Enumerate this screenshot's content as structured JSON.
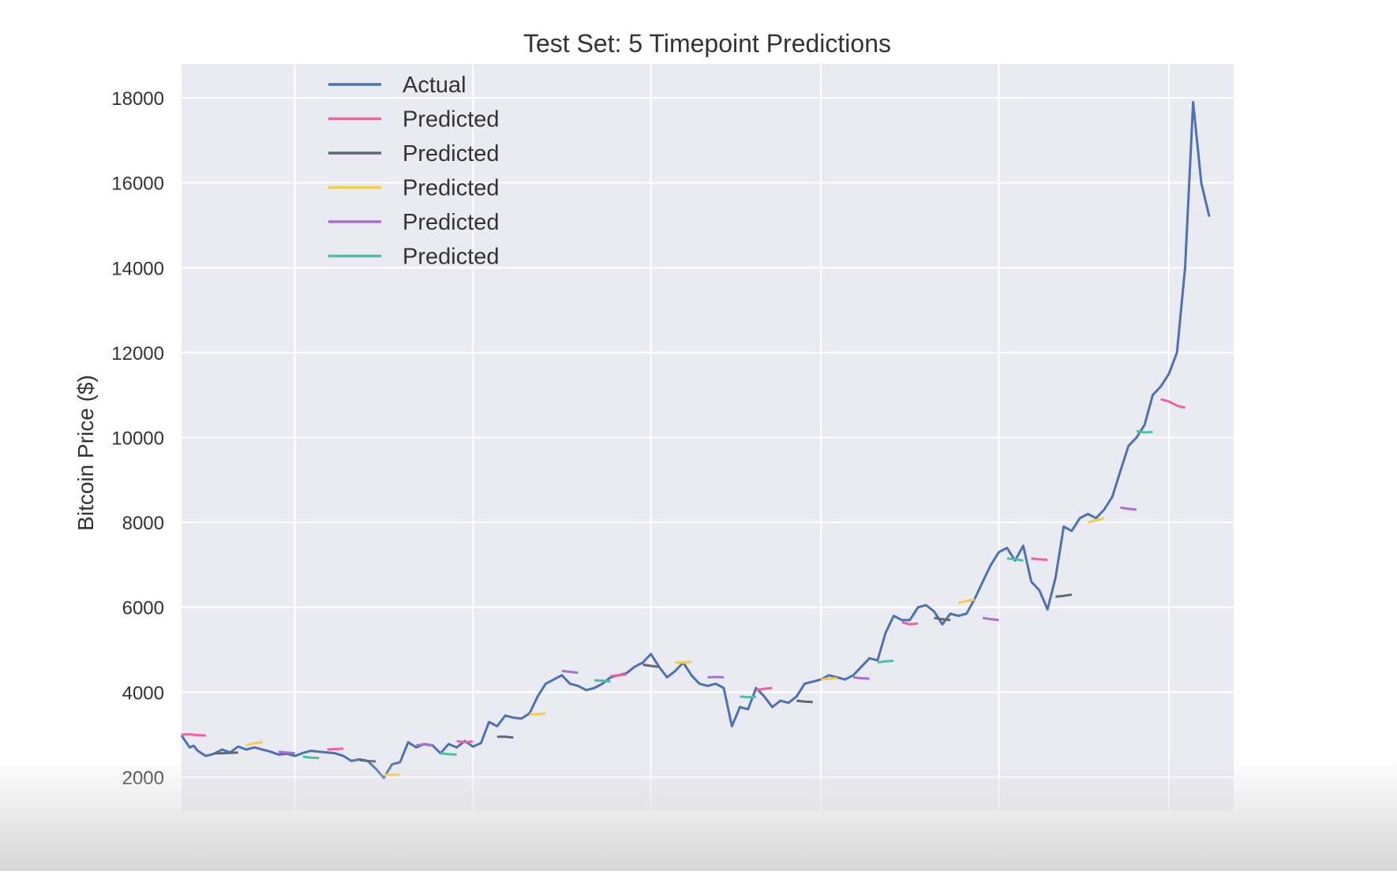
{
  "chart_data": {
    "type": "line",
    "title": "Test Set: 5 Timepoint Predictions",
    "ylabel": "Bitcoin Price ($)",
    "xlabel": "",
    "xlim": [
      0,
      130
    ],
    "ylim": [
      1200,
      18800
    ],
    "yticks": [
      2000,
      4000,
      6000,
      8000,
      10000,
      12000,
      14000,
      16000,
      18000
    ],
    "xgrid": [
      14,
      36,
      58,
      79,
      101,
      122
    ],
    "grid": true,
    "legend_position": "upper-left",
    "legend": [
      {
        "label": "Actual",
        "color": "#4c72b0"
      },
      {
        "label": "Predicted",
        "color": "#f25fa2"
      },
      {
        "label": "Predicted",
        "color": "#5d6a73"
      },
      {
        "label": "Predicted",
        "color": "#f2cc4d"
      },
      {
        "label": "Predicted",
        "color": "#a96fd0"
      },
      {
        "label": "Predicted",
        "color": "#4ac1a4"
      }
    ],
    "series": [
      {
        "role": "actual",
        "color": "#4c72b0",
        "points": [
          [
            0,
            2980
          ],
          [
            1,
            2700
          ],
          [
            1.5,
            2740
          ],
          [
            2,
            2620
          ],
          [
            3,
            2500
          ],
          [
            4,
            2550
          ],
          [
            5,
            2650
          ],
          [
            6,
            2580
          ],
          [
            7,
            2720
          ],
          [
            8,
            2650
          ],
          [
            9,
            2700
          ],
          [
            10,
            2650
          ],
          [
            11,
            2600
          ],
          [
            12,
            2530
          ],
          [
            13,
            2550
          ],
          [
            14,
            2500
          ],
          [
            15,
            2570
          ],
          [
            16,
            2620
          ],
          [
            17,
            2600
          ],
          [
            18,
            2580
          ],
          [
            19,
            2560
          ],
          [
            20,
            2500
          ],
          [
            21,
            2380
          ],
          [
            22,
            2420
          ],
          [
            23,
            2380
          ],
          [
            24,
            2200
          ],
          [
            25,
            1980
          ],
          [
            26,
            2300
          ],
          [
            27,
            2350
          ],
          [
            28,
            2820
          ],
          [
            29,
            2700
          ],
          [
            30,
            2780
          ],
          [
            31,
            2750
          ],
          [
            32,
            2560
          ],
          [
            33,
            2780
          ],
          [
            34,
            2700
          ],
          [
            35,
            2850
          ],
          [
            36,
            2720
          ],
          [
            37,
            2800
          ],
          [
            38,
            3300
          ],
          [
            39,
            3200
          ],
          [
            40,
            3450
          ],
          [
            41,
            3400
          ],
          [
            42,
            3380
          ],
          [
            43,
            3500
          ],
          [
            44,
            3900
          ],
          [
            45,
            4200
          ],
          [
            46,
            4300
          ],
          [
            47,
            4400
          ],
          [
            48,
            4200
          ],
          [
            49,
            4150
          ],
          [
            50,
            4050
          ],
          [
            51,
            4100
          ],
          [
            52,
            4200
          ],
          [
            53,
            4350
          ],
          [
            54,
            4400
          ],
          [
            55,
            4450
          ],
          [
            56,
            4600
          ],
          [
            57,
            4700
          ],
          [
            58,
            4900
          ],
          [
            59,
            4600
          ],
          [
            60,
            4350
          ],
          [
            61,
            4500
          ],
          [
            62,
            4700
          ],
          [
            63,
            4400
          ],
          [
            64,
            4200
          ],
          [
            65,
            4150
          ],
          [
            66,
            4200
          ],
          [
            67,
            4100
          ],
          [
            68,
            3200
          ],
          [
            69,
            3650
          ],
          [
            70,
            3600
          ],
          [
            71,
            4100
          ],
          [
            72,
            3900
          ],
          [
            73,
            3650
          ],
          [
            74,
            3800
          ],
          [
            75,
            3750
          ],
          [
            76,
            3900
          ],
          [
            77,
            4200
          ],
          [
            78,
            4250
          ],
          [
            79,
            4300
          ],
          [
            80,
            4400
          ],
          [
            81,
            4350
          ],
          [
            82,
            4300
          ],
          [
            83,
            4400
          ],
          [
            84,
            4600
          ],
          [
            85,
            4800
          ],
          [
            86,
            4750
          ],
          [
            87,
            5400
          ],
          [
            88,
            5800
          ],
          [
            89,
            5700
          ],
          [
            90,
            5700
          ],
          [
            91,
            6000
          ],
          [
            92,
            6050
          ],
          [
            93,
            5900
          ],
          [
            94,
            5600
          ],
          [
            95,
            5850
          ],
          [
            96,
            5800
          ],
          [
            97,
            5850
          ],
          [
            98,
            6200
          ],
          [
            99,
            6600
          ],
          [
            100,
            7000
          ],
          [
            101,
            7300
          ],
          [
            102,
            7400
          ],
          [
            103,
            7100
          ],
          [
            104,
            7450
          ],
          [
            105,
            6600
          ],
          [
            106,
            6400
          ],
          [
            107,
            5950
          ],
          [
            108,
            6700
          ],
          [
            109,
            7900
          ],
          [
            110,
            7800
          ],
          [
            111,
            8100
          ],
          [
            112,
            8200
          ],
          [
            113,
            8100
          ],
          [
            114,
            8300
          ],
          [
            115,
            8600
          ],
          [
            116,
            9200
          ],
          [
            117,
            9800
          ],
          [
            118,
            10000
          ],
          [
            119,
            10300
          ],
          [
            120,
            11000
          ],
          [
            121,
            11200
          ],
          [
            122,
            11500
          ],
          [
            123,
            12000
          ],
          [
            124,
            14000
          ],
          [
            125,
            17900
          ],
          [
            126,
            16000
          ],
          [
            127,
            15200
          ]
        ]
      },
      {
        "role": "predicted",
        "color": "#f25fa2",
        "segments": [
          [
            [
              0,
              3000
            ],
            [
              1,
              3010
            ],
            [
              2,
              2990
            ],
            [
              3,
              2980
            ]
          ],
          [
            [
              18,
              2650
            ],
            [
              19,
              2660
            ],
            [
              20,
              2670
            ]
          ],
          [
            [
              34,
              2850
            ],
            [
              35,
              2820
            ],
            [
              36,
              2840
            ]
          ],
          [
            [
              53,
              4380
            ],
            [
              54,
              4400
            ],
            [
              55,
              4420
            ]
          ],
          [
            [
              71,
              4050
            ],
            [
              72,
              4080
            ],
            [
              73,
              4100
            ]
          ],
          [
            [
              89,
              5650
            ],
            [
              90,
              5600
            ],
            [
              91,
              5620
            ]
          ],
          [
            [
              105,
              7150
            ],
            [
              106,
              7130
            ],
            [
              107,
              7120
            ]
          ],
          [
            [
              121,
              10900
            ],
            [
              122,
              10850
            ],
            [
              123,
              10750
            ],
            [
              124,
              10700
            ]
          ]
        ]
      },
      {
        "role": "predicted",
        "color": "#5d6a73",
        "segments": [
          [
            [
              4,
              2560
            ],
            [
              5,
              2560
            ],
            [
              6,
              2570
            ],
            [
              7,
              2580
            ]
          ],
          [
            [
              22,
              2400
            ],
            [
              23,
              2380
            ],
            [
              24,
              2370
            ]
          ],
          [
            [
              39,
              2950
            ],
            [
              40,
              2950
            ],
            [
              41,
              2930
            ]
          ],
          [
            [
              57,
              4650
            ],
            [
              58,
              4620
            ],
            [
              59,
              4600
            ]
          ],
          [
            [
              76,
              3800
            ],
            [
              77,
              3780
            ],
            [
              78,
              3770
            ]
          ],
          [
            [
              93,
              5750
            ],
            [
              94,
              5720
            ],
            [
              95,
              5700
            ]
          ],
          [
            [
              108,
              6250
            ],
            [
              109,
              6270
            ],
            [
              110,
              6300
            ]
          ]
        ]
      },
      {
        "role": "predicted",
        "color": "#f2cc4d",
        "segments": [
          [
            [
              8,
              2750
            ],
            [
              9,
              2800
            ],
            [
              10,
              2820
            ]
          ],
          [
            [
              25,
              2050
            ],
            [
              26,
              2060
            ],
            [
              27,
              2050
            ]
          ],
          [
            [
              43,
              3480
            ],
            [
              44,
              3480
            ],
            [
              45,
              3500
            ]
          ],
          [
            [
              61,
              4700
            ],
            [
              62,
              4700
            ],
            [
              63,
              4720
            ]
          ],
          [
            [
              79,
              4300
            ],
            [
              80,
              4320
            ],
            [
              81,
              4330
            ]
          ],
          [
            [
              96,
              6100
            ],
            [
              97,
              6150
            ],
            [
              98,
              6180
            ]
          ],
          [
            [
              112,
              8000
            ],
            [
              113,
              8050
            ],
            [
              114,
              8100
            ]
          ]
        ]
      },
      {
        "role": "predicted",
        "color": "#a96fd0",
        "segments": [
          [
            [
              12,
              2600
            ],
            [
              13,
              2580
            ],
            [
              14,
              2560
            ]
          ],
          [
            [
              29,
              2750
            ],
            [
              30,
              2770
            ],
            [
              31,
              2740
            ]
          ],
          [
            [
              47,
              4500
            ],
            [
              48,
              4480
            ],
            [
              49,
              4460
            ]
          ],
          [
            [
              65,
              4350
            ],
            [
              66,
              4360
            ],
            [
              67,
              4350
            ]
          ],
          [
            [
              83,
              4350
            ],
            [
              84,
              4330
            ],
            [
              85,
              4320
            ]
          ],
          [
            [
              99,
              5750
            ],
            [
              100,
              5720
            ],
            [
              101,
              5700
            ]
          ],
          [
            [
              116,
              8350
            ],
            [
              117,
              8320
            ],
            [
              118,
              8300
            ]
          ]
        ]
      },
      {
        "role": "predicted",
        "color": "#4ac1a4",
        "segments": [
          [
            [
              15,
              2480
            ],
            [
              16,
              2460
            ],
            [
              17,
              2450
            ]
          ],
          [
            [
              32,
              2560
            ],
            [
              33,
              2540
            ],
            [
              34,
              2530
            ]
          ],
          [
            [
              51,
              4280
            ],
            [
              52,
              4270
            ],
            [
              53,
              4250
            ]
          ],
          [
            [
              69,
              3900
            ],
            [
              70,
              3880
            ],
            [
              71,
              3890
            ]
          ],
          [
            [
              86,
              4700
            ],
            [
              87,
              4730
            ],
            [
              88,
              4740
            ]
          ],
          [
            [
              102,
              7150
            ],
            [
              103,
              7130
            ],
            [
              104,
              7100
            ]
          ],
          [
            [
              118,
              10150
            ],
            [
              119,
              10120
            ],
            [
              120,
              10130
            ]
          ]
        ]
      }
    ]
  }
}
